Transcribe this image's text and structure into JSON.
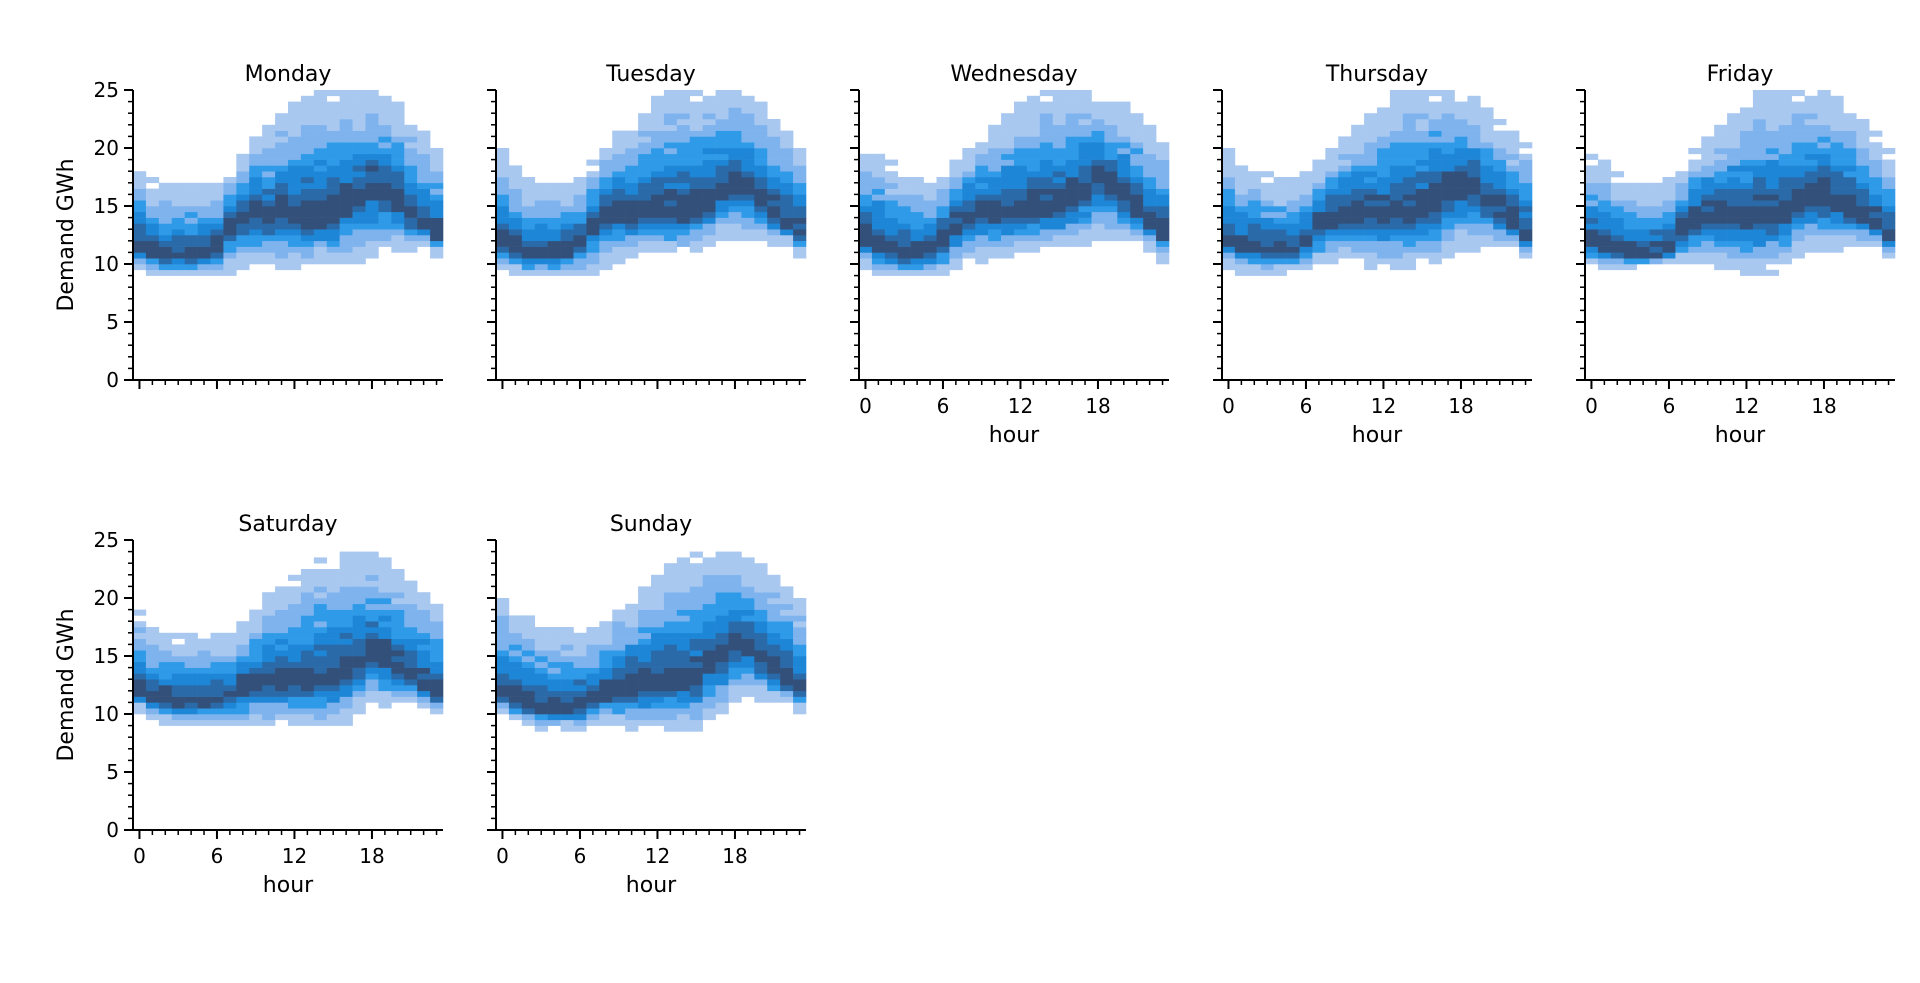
{
  "chart_data": {
    "type": "heatmap",
    "description_kind": "faceted 2D histogram (density of demand by hour of day)",
    "colors": {
      "cmap": [
        "#ffffff",
        "#a9c8f0",
        "#7fb3ee",
        "#2f9be8",
        "#1e86d6",
        "#2a6aa8",
        "#33507a"
      ]
    },
    "bin_width_gwh": 0.5,
    "x": [
      0,
      1,
      2,
      3,
      4,
      5,
      6,
      7,
      8,
      9,
      10,
      11,
      12,
      13,
      14,
      15,
      16,
      17,
      18,
      19,
      20,
      21,
      22,
      23
    ],
    "xlabel": "hour",
    "ylabel": "Demand GWh",
    "xlim": [
      -0.5,
      23.5
    ],
    "ylim": [
      0,
      25
    ],
    "x_ticks": [
      0,
      6,
      12,
      18
    ],
    "y_ticks": [
      0,
      5,
      10,
      15,
      20,
      25
    ],
    "panels": [
      {
        "title": "Monday",
        "low": [
          9.8,
          9.2,
          9.0,
          9.0,
          9.0,
          9.0,
          9.0,
          9.2,
          9.8,
          9.8,
          9.6,
          9.6,
          9.6,
          9.8,
          10.0,
          9.6,
          10.0,
          10.4,
          10.6,
          11.0,
          11.2,
          11.4,
          11.4,
          10.8
        ],
        "high": [
          18.5,
          17.2,
          16.6,
          16.6,
          16.6,
          16.6,
          16.6,
          17.8,
          19.8,
          21.0,
          22.0,
          23.0,
          23.8,
          24.4,
          24.6,
          24.6,
          24.6,
          24.6,
          24.6,
          24.2,
          23.6,
          22.4,
          21.2,
          19.6
        ],
        "center": [
          11.2,
          10.9,
          10.6,
          10.6,
          10.6,
          10.8,
          11.6,
          13.2,
          14.0,
          14.2,
          14.0,
          14.2,
          14.0,
          14.0,
          14.0,
          14.2,
          15.0,
          15.8,
          16.6,
          16.0,
          15.2,
          14.2,
          13.4,
          12.4
        ]
      },
      {
        "title": "Tuesday",
        "low": [
          9.6,
          9.2,
          9.0,
          9.0,
          9.0,
          9.0,
          9.2,
          9.4,
          9.8,
          10.2,
          10.6,
          11.0,
          11.0,
          11.0,
          11.2,
          11.4,
          11.8,
          12.2,
          12.2,
          12.2,
          12.0,
          11.8,
          11.6,
          10.8
        ],
        "high": [
          19.6,
          18.4,
          17.2,
          17.0,
          17.0,
          17.0,
          17.2,
          18.6,
          20.0,
          21.2,
          22.2,
          23.2,
          24.2,
          24.8,
          25.0,
          25.0,
          25.0,
          25.0,
          24.8,
          24.4,
          23.6,
          22.4,
          21.2,
          20.4
        ],
        "center": [
          11.6,
          11.2,
          10.9,
          10.8,
          10.8,
          11.0,
          11.8,
          13.2,
          14.0,
          14.4,
          14.2,
          14.2,
          14.2,
          14.2,
          14.2,
          14.4,
          15.2,
          16.2,
          17.0,
          16.4,
          15.4,
          14.4,
          13.6,
          12.6
        ]
      },
      {
        "title": "Wednesday",
        "low": [
          9.8,
          9.2,
          9.0,
          9.0,
          9.0,
          9.0,
          9.2,
          9.8,
          10.0,
          10.2,
          10.4,
          10.6,
          11.0,
          11.2,
          11.4,
          11.6,
          11.6,
          11.8,
          12.2,
          12.2,
          12.0,
          11.6,
          11.2,
          10.4
        ],
        "high": [
          20.0,
          19.6,
          18.6,
          18.0,
          17.4,
          17.4,
          17.8,
          18.8,
          19.8,
          21.0,
          22.0,
          23.0,
          23.8,
          24.4,
          24.8,
          25.0,
          25.0,
          25.0,
          24.6,
          24.2,
          23.6,
          22.8,
          21.6,
          20.6
        ],
        "center": [
          12.0,
          11.5,
          11.0,
          10.8,
          10.8,
          11.0,
          11.8,
          13.2,
          14.2,
          14.6,
          14.4,
          14.4,
          14.4,
          14.4,
          14.4,
          14.6,
          15.4,
          16.4,
          17.2,
          16.6,
          15.6,
          14.6,
          13.6,
          12.6
        ]
      },
      {
        "title": "Thursday",
        "low": [
          9.8,
          9.4,
          9.4,
          9.4,
          9.4,
          9.6,
          9.8,
          10.0,
          10.0,
          10.0,
          10.0,
          9.6,
          9.6,
          9.6,
          9.6,
          10.0,
          10.0,
          10.6,
          11.2,
          11.4,
          11.6,
          11.6,
          11.6,
          10.8
        ],
        "high": [
          19.8,
          18.4,
          18.4,
          17.6,
          17.2,
          17.4,
          17.8,
          18.8,
          19.8,
          21.0,
          22.0,
          23.0,
          24.0,
          24.6,
          25.0,
          25.0,
          25.0,
          25.0,
          24.8,
          24.4,
          23.4,
          22.4,
          21.4,
          20.4
        ],
        "center": [
          11.8,
          11.4,
          11.2,
          11.0,
          11.0,
          11.0,
          11.8,
          13.2,
          14.0,
          14.2,
          14.2,
          14.2,
          14.2,
          14.2,
          14.4,
          14.6,
          15.2,
          16.0,
          16.8,
          16.2,
          15.2,
          14.2,
          13.4,
          12.2
        ]
      },
      {
        "title": "Friday",
        "low": [
          10.2,
          9.6,
          9.6,
          9.6,
          9.8,
          10.0,
          10.0,
          10.0,
          10.0,
          10.0,
          9.8,
          9.6,
          9.2,
          9.2,
          9.4,
          10.0,
          10.6,
          11.0,
          11.2,
          11.4,
          11.6,
          11.6,
          11.6,
          10.8
        ],
        "high": [
          19.2,
          18.6,
          17.6,
          17.0,
          16.8,
          16.8,
          17.2,
          18.4,
          19.6,
          20.8,
          21.8,
          22.8,
          23.8,
          24.6,
          24.8,
          25.0,
          25.0,
          24.6,
          24.6,
          24.2,
          23.4,
          22.4,
          21.2,
          19.8
        ],
        "center": [
          11.6,
          11.2,
          11.0,
          10.8,
          10.8,
          10.8,
          11.4,
          12.8,
          13.8,
          14.0,
          14.0,
          14.0,
          14.0,
          14.0,
          14.0,
          14.2,
          14.8,
          15.4,
          15.8,
          15.4,
          14.8,
          14.0,
          13.2,
          12.2
        ]
      },
      {
        "title": "Saturday",
        "low": [
          10.4,
          9.6,
          9.4,
          9.0,
          9.0,
          9.0,
          9.0,
          9.0,
          9.0,
          9.0,
          9.0,
          9.0,
          9.0,
          9.0,
          9.0,
          9.0,
          9.4,
          10.0,
          10.6,
          10.8,
          11.0,
          11.0,
          10.8,
          10.2
        ],
        "high": [
          18.6,
          17.4,
          16.6,
          16.6,
          16.6,
          16.6,
          16.6,
          16.6,
          17.6,
          19.0,
          20.2,
          21.0,
          22.0,
          22.8,
          23.2,
          23.4,
          23.6,
          23.6,
          23.6,
          23.4,
          22.4,
          21.6,
          21.0,
          19.6
        ],
        "center": [
          11.8,
          11.4,
          11.2,
          11.0,
          11.0,
          11.0,
          11.2,
          11.6,
          12.2,
          12.6,
          12.6,
          12.6,
          12.6,
          12.6,
          12.8,
          13.0,
          13.6,
          14.4,
          15.0,
          14.6,
          13.8,
          13.0,
          12.4,
          11.6
        ]
      },
      {
        "title": "Sunday",
        "low": [
          10.4,
          9.6,
          9.0,
          8.8,
          8.8,
          8.8,
          8.8,
          8.8,
          9.0,
          9.0,
          8.6,
          8.6,
          8.6,
          8.6,
          8.6,
          8.6,
          9.4,
          10.2,
          11.0,
          11.2,
          11.4,
          11.4,
          11.2,
          10.4
        ],
        "high": [
          20.0,
          19.4,
          18.6,
          17.4,
          17.4,
          17.4,
          17.0,
          17.2,
          18.0,
          19.2,
          20.2,
          21.0,
          21.8,
          22.8,
          23.2,
          23.6,
          23.8,
          23.8,
          23.6,
          23.2,
          22.8,
          22.0,
          21.0,
          20.0
        ],
        "center": [
          11.4,
          11.0,
          10.6,
          10.4,
          10.2,
          10.2,
          10.6,
          11.2,
          11.8,
          12.2,
          12.4,
          12.4,
          12.6,
          12.8,
          13.0,
          13.2,
          14.2,
          15.2,
          16.2,
          15.8,
          14.8,
          13.6,
          12.8,
          12.0
        ]
      }
    ]
  }
}
